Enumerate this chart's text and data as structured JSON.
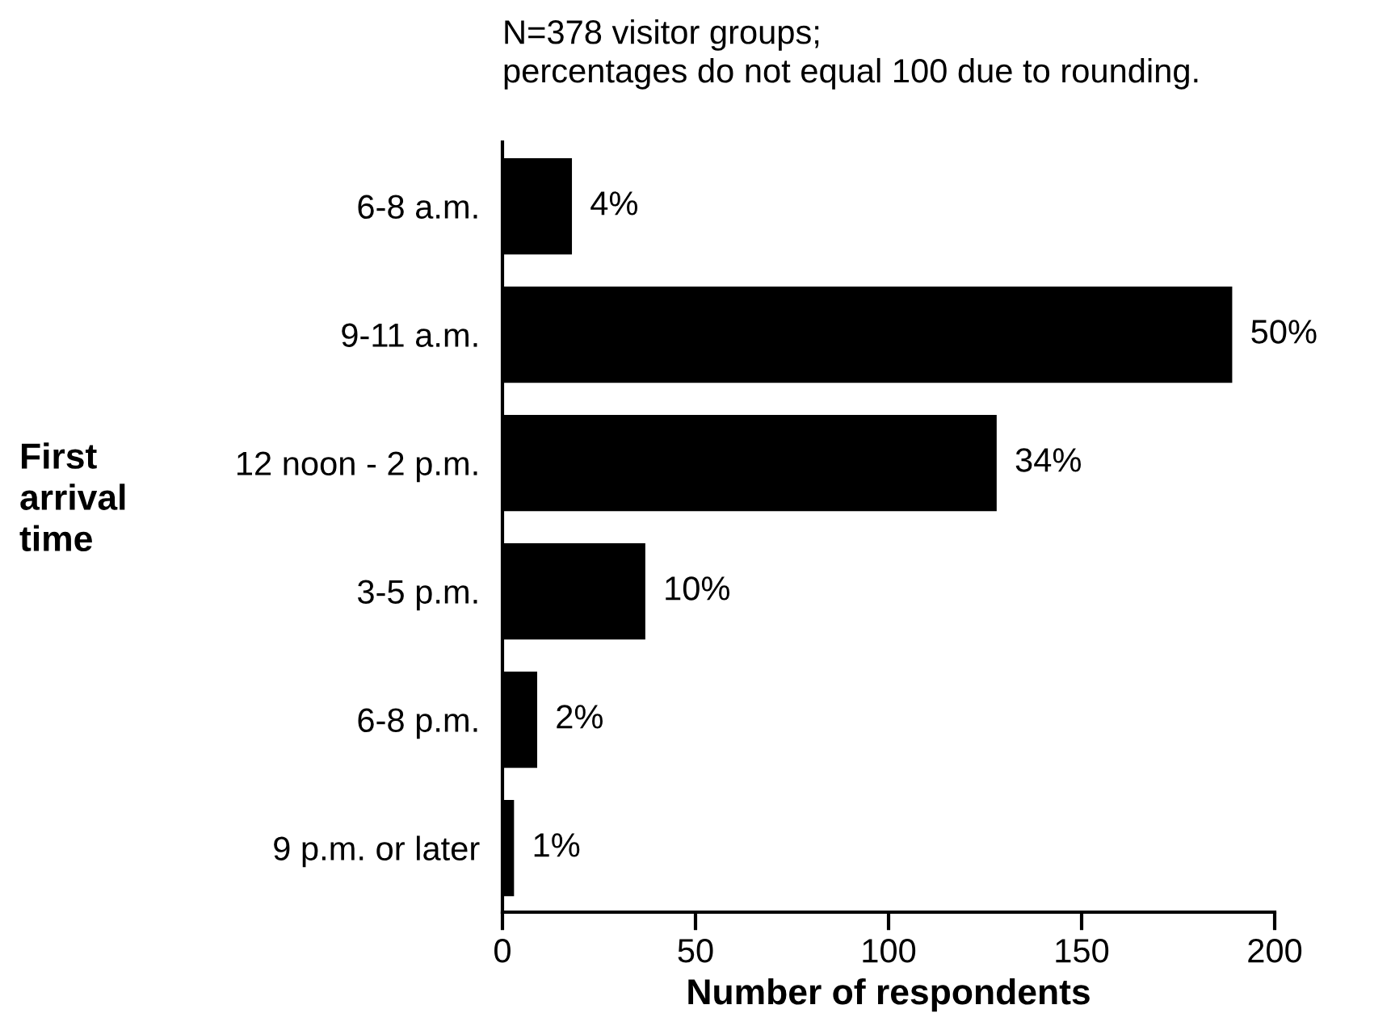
{
  "chart_data": {
    "type": "bar",
    "orientation": "horizontal",
    "categories": [
      "6-8 a.m.",
      "9-11 a.m.",
      "12 noon - 2 p.m.",
      "3-5 p.m.",
      "6-8 p.m.",
      "9 p.m. or later"
    ],
    "values": [
      18,
      189,
      128,
      37,
      9,
      3
    ],
    "color": "#000000",
    "xlim": [
      0,
      200
    ],
    "xticks": [
      0,
      50,
      100,
      150,
      200
    ],
    "xlabel": "Number of respondents",
    "ylabel": "First\narrival\ntime",
    "annotations": [
      "N=378 visitor groups;\npercentages do not equal 100 due to rounding.",
      {
        "text": "4%",
        "x": 18,
        "y": "6-8 a.m."
      },
      {
        "text": "50%",
        "x": 189,
        "y": "9-11 a.m."
      },
      {
        "text": "34%",
        "x": 128,
        "y": "12 noon - 2 p.m."
      },
      {
        "text": "10%",
        "x": 37,
        "y": "3-5 p.m."
      },
      {
        "text": "2%",
        "x": 9,
        "y": "6-8 p.m."
      },
      {
        "text": "1%",
        "x": 3,
        "y": "9 p.m. or later"
      }
    ],
    "grid": false,
    "legend": false
  }
}
